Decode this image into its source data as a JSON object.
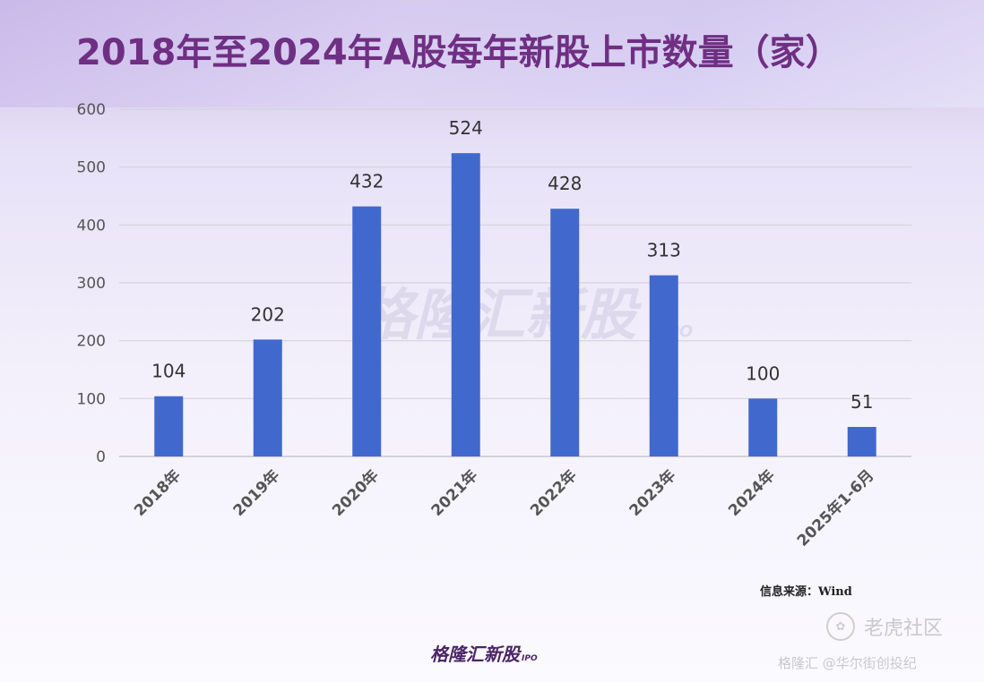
{
  "chart_data": {
    "type": "bar",
    "title": "2018年至2024年A股每年新股上市数量（家）",
    "categories": [
      "2018年",
      "2019年",
      "2020年",
      "2021年",
      "2022年",
      "2023年",
      "2024年",
      "2025年1-6月"
    ],
    "values": [
      104,
      202,
      432,
      524,
      428,
      313,
      100,
      51
    ],
    "ylim": [
      0,
      600
    ],
    "yticks": [
      0,
      100,
      200,
      300,
      400,
      500,
      600
    ],
    "xlabel": "",
    "ylabel": "",
    "grid": true,
    "legend": "none",
    "bar_color": "#4169cd",
    "data_labels": true
  },
  "source": "信息来源：Wind",
  "watermark": "格隆汇新股",
  "watermark_sub": "IPO",
  "brand": "格隆汇新股",
  "brand_sub": "IPO",
  "corner_logo": "老虎社区",
  "corner_sub": "格隆汇 @华尔街创投纪"
}
